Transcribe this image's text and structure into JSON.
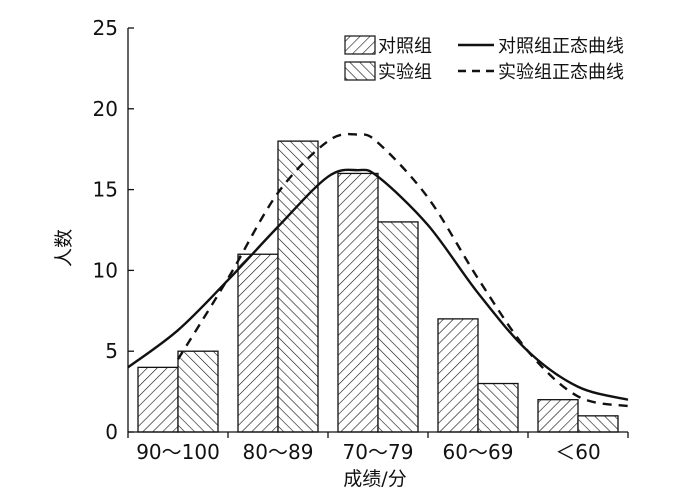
{
  "chart_data": {
    "type": "bar",
    "title": "",
    "xlabel": "成绩/分",
    "ylabel": "人数",
    "ylim": [
      0,
      25
    ],
    "yticks": [
      0,
      5,
      10,
      15,
      20,
      25
    ],
    "categories": [
      "90～100",
      "80～89",
      "70～79",
      "60～69",
      "＜60"
    ],
    "series": [
      {
        "name": "对照组",
        "values": [
          4,
          11,
          16,
          7,
          2
        ],
        "hatch": "forward"
      },
      {
        "name": "实验组",
        "values": [
          5,
          18,
          13,
          3,
          1
        ],
        "hatch": "back"
      }
    ],
    "curves": [
      {
        "name": "对照组正态曲线",
        "style": "solid",
        "points": [
          [
            0.0,
            4.0
          ],
          [
            0.5,
            6.3
          ],
          [
            1.0,
            9.4
          ],
          [
            1.5,
            12.7
          ],
          [
            2.0,
            15.8
          ],
          [
            2.3,
            16.2
          ],
          [
            2.5,
            15.8
          ],
          [
            3.0,
            12.8
          ],
          [
            3.5,
            8.6
          ],
          [
            4.0,
            5.0
          ],
          [
            4.5,
            2.8
          ],
          [
            5.0,
            2.0
          ]
        ]
      },
      {
        "name": "实验组正态曲线",
        "style": "dashed",
        "points": [
          [
            0.5,
            4.5
          ],
          [
            1.0,
            9.5
          ],
          [
            1.5,
            14.8
          ],
          [
            2.0,
            18.0
          ],
          [
            2.3,
            18.4
          ],
          [
            2.5,
            17.9
          ],
          [
            3.0,
            14.5
          ],
          [
            3.5,
            9.5
          ],
          [
            4.0,
            5.0
          ],
          [
            4.5,
            2.2
          ],
          [
            5.0,
            1.6
          ]
        ]
      }
    ],
    "legend": {
      "position": "top-right"
    },
    "grid": false,
    "colors": {
      "bar_fill": "#ffffff",
      "bar_stroke": "#111111",
      "line": "#111111"
    }
  }
}
